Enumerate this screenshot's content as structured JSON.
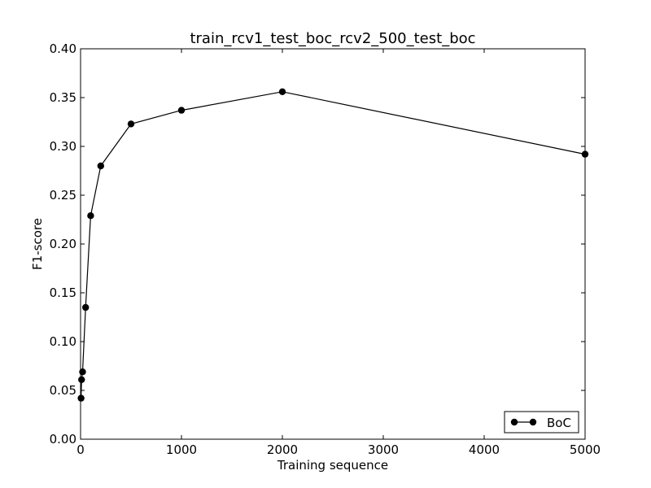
{
  "chart_data": {
    "type": "line",
    "title": "train_rcv1_test_boc_rcv2_500_test_boc",
    "xlabel": "Training sequence",
    "ylabel": "F1-score",
    "xlim": [
      0,
      5000
    ],
    "ylim": [
      0.0,
      0.4
    ],
    "x_ticks": [
      0,
      1000,
      2000,
      3000,
      4000,
      5000
    ],
    "x_tick_labels": [
      "0",
      "1000",
      "2000",
      "3000",
      "4000",
      "5000"
    ],
    "y_ticks": [
      0.0,
      0.05,
      0.1,
      0.15,
      0.2,
      0.25,
      0.3,
      0.35,
      0.4
    ],
    "y_tick_labels": [
      "0.00",
      "0.05",
      "0.10",
      "0.15",
      "0.20",
      "0.25",
      "0.30",
      "0.35",
      "0.40"
    ],
    "grid": false,
    "legend": {
      "position": "lower-right",
      "entries": [
        "BoC"
      ]
    },
    "series": [
      {
        "name": "BoC",
        "color": "#000000",
        "marker": "circle",
        "x": [
          5,
          10,
          20,
          50,
          100,
          200,
          500,
          1000,
          2000,
          5000
        ],
        "y": [
          0.042,
          0.061,
          0.069,
          0.135,
          0.229,
          0.28,
          0.323,
          0.337,
          0.356,
          0.292
        ]
      }
    ]
  }
}
